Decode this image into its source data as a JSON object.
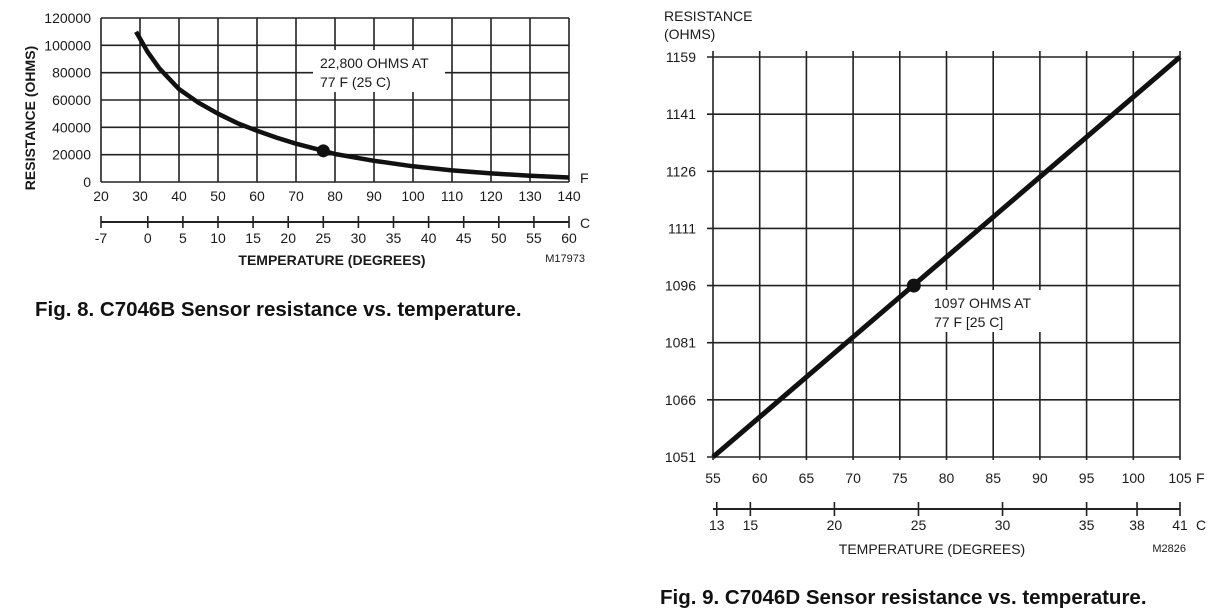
{
  "chart_data": [
    {
      "type": "line",
      "caption": "Fig. 8. C7046B Sensor resistance vs. temperature.",
      "ylabel": "RESISTANCE (OHMS)",
      "xlabel": "TEMPERATURE (DEGREES)",
      "code": "M17973",
      "x_unit": "F",
      "x2_unit": "C",
      "xlim": [
        20,
        140
      ],
      "ylim": [
        0,
        120000
      ],
      "x_ticks": [
        20,
        30,
        40,
        50,
        60,
        70,
        80,
        90,
        100,
        110,
        120,
        130,
        140
      ],
      "x2_ticks": [
        -7,
        0,
        5,
        10,
        15,
        20,
        25,
        30,
        35,
        40,
        45,
        50,
        55,
        60
      ],
      "y_ticks": [
        0,
        20000,
        40000,
        60000,
        80000,
        100000,
        120000
      ],
      "grid": true,
      "series": [
        {
          "x": [
            29,
            32,
            35,
            40,
            45,
            50,
            55,
            60,
            65,
            70,
            77,
            80,
            90,
            100,
            110,
            120,
            130,
            140
          ],
          "y": [
            110000,
            95000,
            83000,
            68000,
            58000,
            50000,
            43000,
            37500,
            32500,
            28000,
            22800,
            20500,
            15500,
            11500,
            8500,
            6300,
            4600,
            3300
          ]
        }
      ],
      "highlight": {
        "x": 77,
        "y": 22800
      },
      "annotation": {
        "line1": "22,800 OHMS AT",
        "line2": "77  F (25  C)"
      }
    },
    {
      "type": "line",
      "caption": "Fig. 9. C7046D Sensor resistance vs. temperature.",
      "ylabel_line1": "RESISTANCE",
      "ylabel_line2": "(OHMS)",
      "xlabel": "TEMPERATURE (DEGREES)",
      "code": "M2826",
      "x_unit": "F",
      "x2_unit": "C",
      "xlim": [
        55,
        105
      ],
      "ylim": [
        1051,
        1159
      ],
      "x_ticks": [
        55,
        60,
        65,
        70,
        75,
        80,
        85,
        90,
        95,
        100,
        105
      ],
      "x2_ticks": [
        13,
        15,
        20,
        25,
        30,
        35,
        38,
        41
      ],
      "y_ticks": [
        1051,
        1066,
        1081,
        1096,
        1111,
        1126,
        1141,
        1159
      ],
      "grid": true,
      "series": [
        {
          "x": [
            55,
            105
          ],
          "y": [
            1051,
            1159
          ]
        }
      ],
      "highlight": {
        "x": 77,
        "y": 1097
      },
      "annotation": {
        "line1": "1097 OHMS AT",
        "line2": "77  F [25  C]"
      }
    }
  ]
}
